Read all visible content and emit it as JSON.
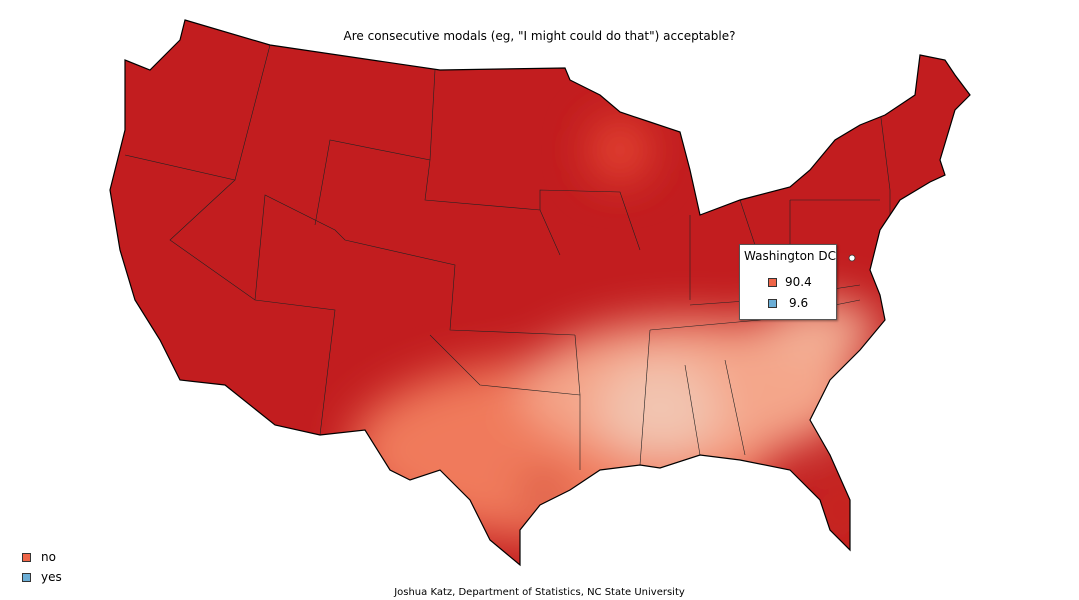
{
  "title": "Are consecutive modals (eg, \"I might could do that\") acceptable?",
  "tooltip": {
    "region": "Washington DC",
    "values": [
      {
        "answer": "no",
        "value": "90.4"
      },
      {
        "answer": "yes",
        "value": "9.6"
      }
    ]
  },
  "legend": [
    {
      "label": "no",
      "color": "#ef6548"
    },
    {
      "label": "yes",
      "color": "#6baed6"
    }
  ],
  "colors": {
    "high_no": "#b2181b",
    "mid_no": "#ef6548",
    "low_no": "#f4c0a8"
  },
  "footer": "Joshua Katz, Department of Statistics, NC State University"
}
